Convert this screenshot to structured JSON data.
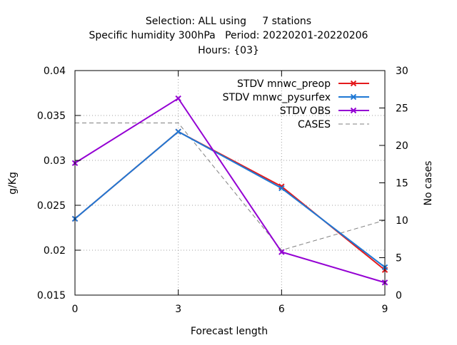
{
  "chart_data": {
    "type": "line",
    "title_lines": [
      "Selection: ALL using     7 stations",
      "Specific humidity 300hPa   Period: 20220201-20220206",
      "Hours: {03}"
    ],
    "xlabel": "Forecast length",
    "ylabel": "g/Kg",
    "y2label": "No cases",
    "x": [
      0,
      3,
      6,
      9
    ],
    "xlim": [
      0,
      9
    ],
    "ylim": [
      0.015,
      0.04
    ],
    "y2lim": [
      0,
      30
    ],
    "x_ticks": [
      0,
      3,
      6,
      9
    ],
    "y_ticks": [
      "0.015",
      "0.02",
      "0.025",
      "0.03",
      "0.035",
      "0.04"
    ],
    "y2_ticks": [
      "0",
      "5",
      "10",
      "15",
      "20",
      "25",
      "30"
    ],
    "grid": true,
    "legend_position": "top-right",
    "series": [
      {
        "name": "STDV mnwc_preop",
        "axis": "y",
        "color": "#e41a1c",
        "style": "solid",
        "marker": "x",
        "values": [
          0.0235,
          0.0332,
          0.0271,
          0.0178
        ]
      },
      {
        "name": "STDV mnwc_pysurfex",
        "axis": "y",
        "color": "#1f78d4",
        "style": "solid",
        "marker": "x",
        "values": [
          0.0235,
          0.0332,
          0.0269,
          0.0181
        ]
      },
      {
        "name": "STDV OBS",
        "axis": "y",
        "color": "#9400d3",
        "style": "solid",
        "marker": "x",
        "values": [
          0.0297,
          0.0369,
          0.0198,
          0.0164
        ]
      },
      {
        "name": "CASES",
        "axis": "y2",
        "color": "#808080",
        "style": "dashed",
        "marker": "none",
        "values": [
          23,
          23,
          6,
          10
        ]
      }
    ]
  }
}
